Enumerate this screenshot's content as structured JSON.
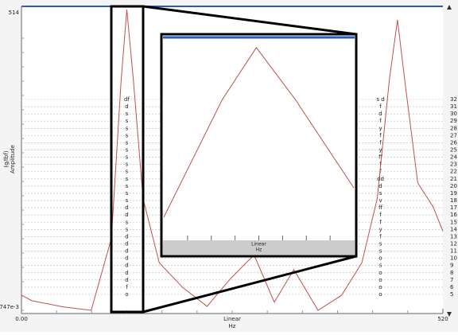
{
  "chart_data": {
    "type": "line",
    "ylog": true,
    "ylabel": [
      "(g/lbf)",
      "Amplitude"
    ],
    "xlabel": [
      "Linear",
      "Hz"
    ],
    "xlim": [
      0,
      520
    ],
    "xticks": [
      {
        "value": 0,
        "label": "0.00"
      },
      520
    ],
    "ylim": [
      0.747,
      514
    ],
    "yticks": [
      514,
      {
        "value": 0.747,
        "label": "747e-3"
      }
    ],
    "series": [
      {
        "color": "#c0504d",
        "x": [
          0,
          13,
          52,
          86,
          111,
          123,
          130,
          138,
          150,
          170,
          199,
          229,
          258,
          287,
          312,
          336,
          366,
          395,
          420,
          439,
          454,
          464,
          474,
          489,
          508,
          520
        ],
        "values": [
          1.1,
          0.98,
          0.86,
          0.8,
          3.7,
          108,
          480,
          108,
          8.6,
          2.2,
          1.3,
          0.87,
          1.57,
          2.6,
          0.95,
          1.9,
          0.8,
          1.1,
          2.2,
          8.6,
          108,
          386,
          92,
          12,
          7.2,
          4.3
        ]
      }
    ],
    "rows": [
      32,
      31,
      30,
      29,
      28,
      27,
      26,
      25,
      24,
      23,
      22,
      21,
      20,
      19,
      18,
      17,
      16,
      15,
      14,
      13,
      12,
      11,
      10,
      9,
      8,
      7,
      6,
      5
    ],
    "marker_columns": [
      {
        "x": 130,
        "labels": [
          "df",
          "d",
          "s",
          "s",
          "s",
          "s",
          "s",
          "s",
          "s",
          "s",
          "s",
          "s",
          "s",
          "s",
          "s",
          "d",
          "d",
          "s",
          "s",
          "d",
          "d",
          "d",
          "d",
          "d",
          "d",
          "d",
          "f",
          "o"
        ]
      },
      {
        "x": 443,
        "labels": [
          "s d",
          "f",
          "d",
          "f",
          "y",
          "f",
          "f",
          "y",
          "ff",
          "f",
          "f",
          "dd",
          "d",
          "s",
          "v",
          "ff",
          "f",
          "f",
          "y",
          "f",
          "s",
          "s",
          "o",
          "s",
          "o",
          "o",
          "o",
          "o"
        ]
      }
    ],
    "inset": {
      "xlim": [
        111,
        150
      ],
      "ylim": [
        2,
        600
      ],
      "xlabel": [
        "Linear",
        "Hz"
      ]
    }
  }
}
